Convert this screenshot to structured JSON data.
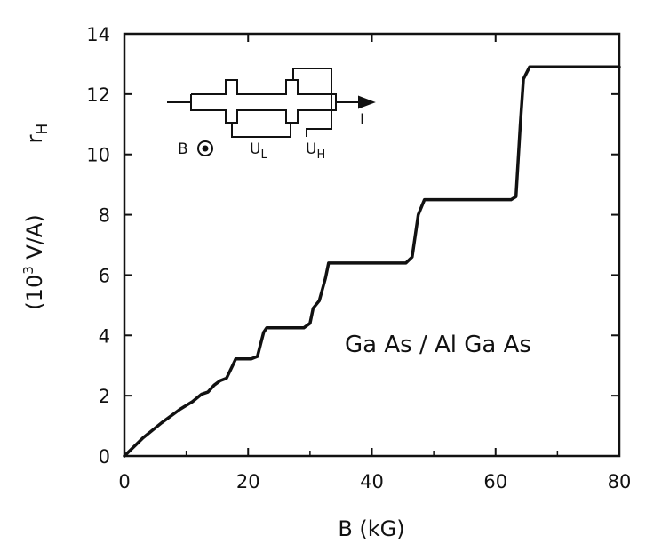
{
  "chart_data": {
    "type": "line",
    "xlabel": "B  (kG)",
    "ylabel_main": "r",
    "ylabel_sub": "H",
    "yunit_prefix": "(10",
    "yunit_exp": "3",
    "yunit_suffix": " V/A)",
    "xlim": [
      0,
      80
    ],
    "ylim": [
      0,
      14
    ],
    "xticks": [
      0,
      20,
      40,
      60,
      80
    ],
    "yticks": [
      0,
      2,
      4,
      6,
      8,
      10,
      12,
      14
    ],
    "annotation": "Ga As / Al Ga As",
    "inset": {
      "b_label": "B",
      "ul_label": "U",
      "ul_sub": "L",
      "uh_label": "U",
      "uh_sub": "H",
      "current_label": "I"
    },
    "series": [
      {
        "points": [
          [
            0,
            0
          ],
          [
            3,
            0.6
          ],
          [
            6,
            1.1
          ],
          [
            9,
            1.55
          ],
          [
            11,
            1.8
          ],
          [
            12.5,
            2.05
          ],
          [
            13.5,
            2.12
          ],
          [
            14.5,
            2.35
          ],
          [
            15.5,
            2.5
          ],
          [
            16.5,
            2.58
          ],
          [
            17.5,
            3.0
          ],
          [
            18,
            3.22
          ],
          [
            20.5,
            3.22
          ],
          [
            21.5,
            3.3
          ],
          [
            22.5,
            4.1
          ],
          [
            23,
            4.25
          ],
          [
            29,
            4.25
          ],
          [
            30,
            4.4
          ],
          [
            30.5,
            4.9
          ],
          [
            31.5,
            5.15
          ],
          [
            32.5,
            5.9
          ],
          [
            33,
            6.4
          ],
          [
            45.5,
            6.4
          ],
          [
            46.5,
            6.6
          ],
          [
            47.5,
            8.0
          ],
          [
            48.5,
            8.5
          ],
          [
            62.5,
            8.5
          ],
          [
            63.3,
            8.6
          ],
          [
            64,
            11.0
          ],
          [
            64.5,
            12.5
          ],
          [
            65.5,
            12.9
          ],
          [
            80,
            12.9
          ]
        ]
      }
    ]
  }
}
